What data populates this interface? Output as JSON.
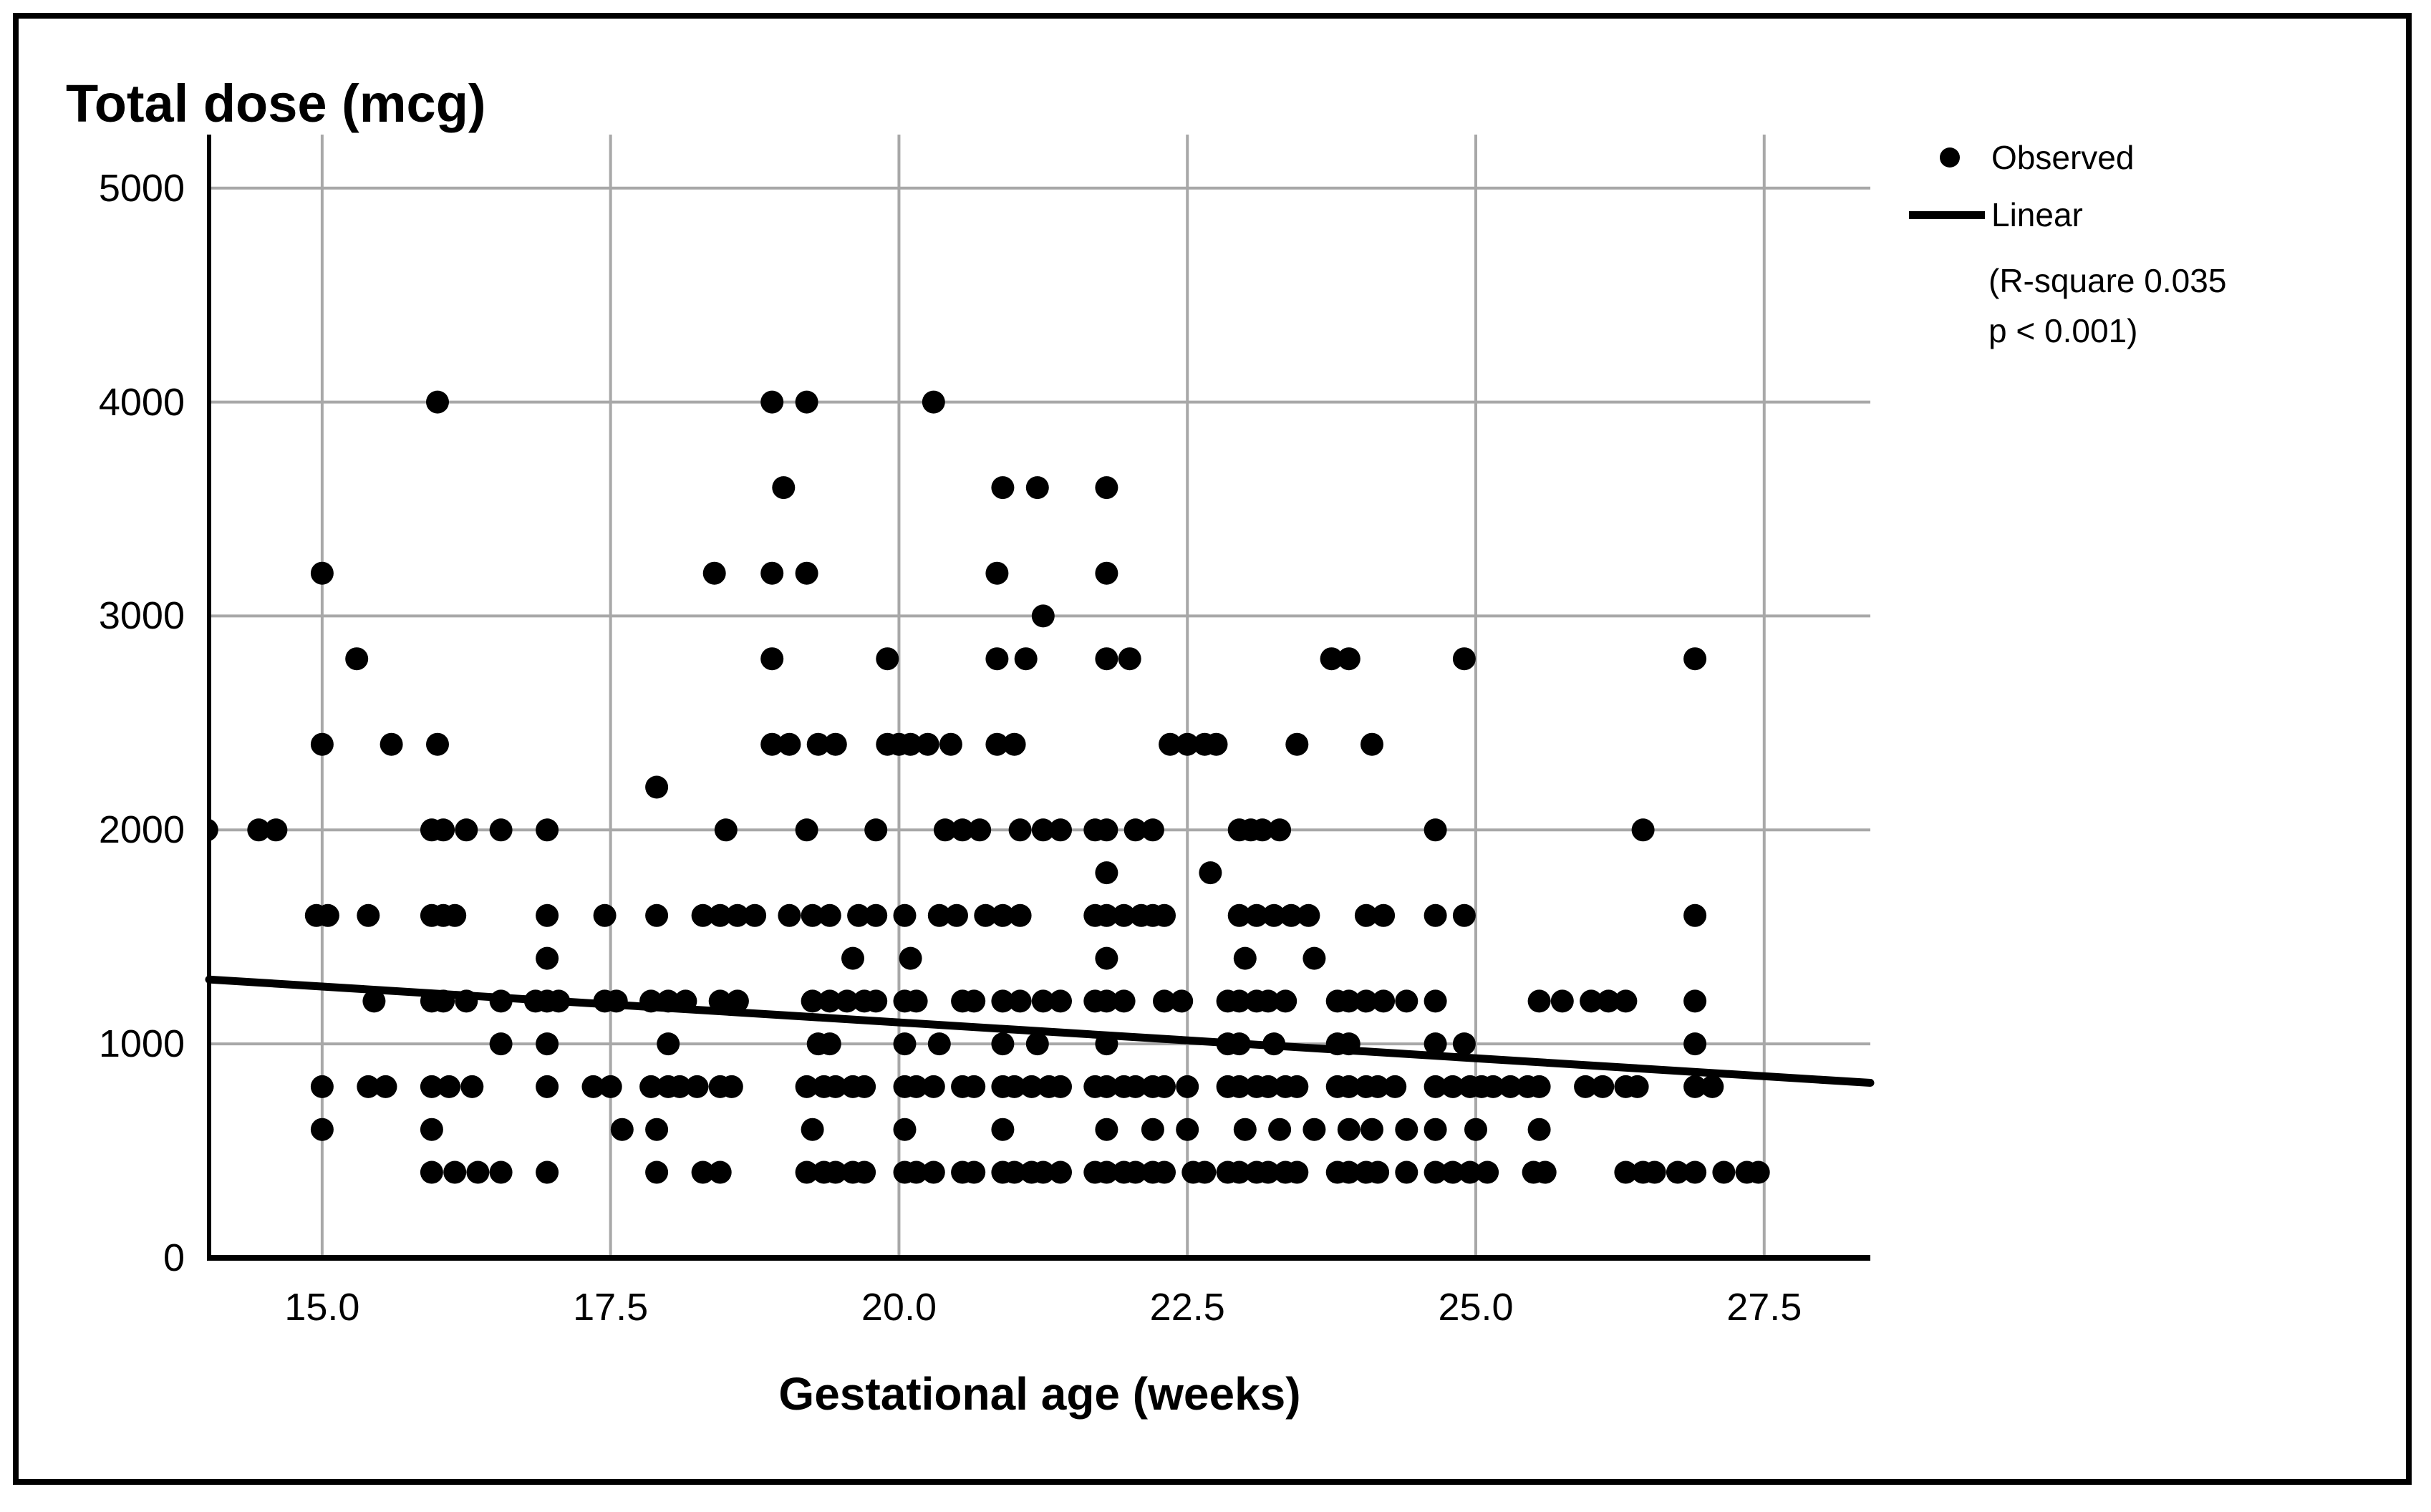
{
  "title": "Total dose (mcg)",
  "x_axis": {
    "label": "Gestational age (weeks)",
    "tick_labels": [
      "15.0",
      "17.5",
      "20.0",
      "22.5",
      "25.0",
      "27.5"
    ],
    "tick_values": [
      15.0,
      17.5,
      20.0,
      22.5,
      25.0,
      27.5
    ],
    "min": 14.02,
    "max": 28.42
  },
  "y_axis": {
    "tick_labels": [
      "0",
      "1000",
      "2000",
      "3000",
      "4000",
      "5000"
    ],
    "tick_values": [
      0,
      1000,
      2000,
      3000,
      4000,
      5000
    ],
    "min": 0,
    "max": 5250
  },
  "legend": {
    "observed_label": "Observed",
    "linear_label": "Linear",
    "note_line1": "(R-square 0.035",
    "note_line2": "p < 0.001)"
  },
  "colors": {
    "points": "#000000",
    "fit_line": "#000000",
    "grid": "#a8a8a8",
    "axis": "#000000",
    "background": "#ffffff",
    "border": "#000000"
  },
  "chart_data": {
    "type": "scatter",
    "title": "Total dose (mcg)",
    "xlabel": "Gestational age (weeks)",
    "ylabel": "Total dose (mcg)",
    "xlim": [
      14.02,
      28.42
    ],
    "ylim": [
      0,
      5250
    ],
    "x_ticks": [
      15.0,
      17.5,
      20.0,
      22.5,
      25.0,
      27.5
    ],
    "y_ticks": [
      0,
      1000,
      2000,
      3000,
      4000,
      5000
    ],
    "grid": true,
    "legend_position": "upper-right-outside",
    "series": [
      {
        "name": "Observed",
        "marker": "dot",
        "points_by_dose": {
          "4000": [
            16.0,
            18.9,
            19.2,
            20.3
          ],
          "3600": [
            19.0,
            20.9,
            21.2,
            21.8
          ],
          "3200": [
            15.0,
            18.4,
            18.9,
            19.2,
            20.85,
            21.8
          ],
          "3000": [
            21.25
          ],
          "2800": [
            15.3,
            18.9,
            19.9,
            20.85,
            21.1,
            21.8,
            22.0,
            23.75,
            23.9,
            24.9,
            26.9
          ],
          "2400": [
            15.0,
            15.6,
            16.0,
            18.9,
            19.05,
            19.3,
            19.45,
            19.9,
            20.0,
            20.1,
            20.25,
            20.45,
            20.85,
            21.0,
            22.35,
            22.5,
            22.65,
            22.75,
            23.45,
            24.1
          ],
          "2200": [
            17.9
          ],
          "2000": [
            14.0,
            14.45,
            14.6,
            15.95,
            16.05,
            16.25,
            16.55,
            16.95,
            18.5,
            19.2,
            19.8,
            20.4,
            20.55,
            20.7,
            21.05,
            21.25,
            21.4,
            21.7,
            21.8,
            22.05,
            22.2,
            22.95,
            23.05,
            23.15,
            23.3,
            24.65,
            26.45
          ],
          "1800": [
            21.8,
            22.7
          ],
          "1600": [
            14.95,
            15.05,
            15.4,
            15.95,
            16.05,
            16.15,
            16.95,
            17.45,
            17.9,
            18.3,
            18.45,
            18.6,
            18.75,
            19.05,
            19.25,
            19.4,
            19.65,
            19.8,
            20.05,
            20.35,
            20.5,
            20.75,
            20.9,
            21.05,
            21.7,
            21.8,
            21.95,
            22.1,
            22.2,
            22.3,
            22.95,
            23.1,
            23.25,
            23.4,
            23.55,
            24.05,
            24.2,
            24.65,
            24.9,
            26.9
          ],
          "1400": [
            16.95,
            19.6,
            20.1,
            21.8,
            23.0,
            23.6
          ],
          "1200": [
            15.45,
            15.95,
            16.05,
            16.25,
            16.55,
            16.85,
            16.95,
            17.05,
            17.45,
            17.55,
            17.85,
            18.0,
            18.15,
            18.45,
            18.6,
            19.25,
            19.4,
            19.55,
            19.7,
            19.8,
            20.05,
            20.15,
            20.55,
            20.65,
            20.9,
            21.05,
            21.25,
            21.4,
            21.7,
            21.8,
            21.95,
            22.3,
            22.45,
            22.85,
            22.95,
            23.1,
            23.2,
            23.35,
            23.8,
            23.9,
            24.05,
            24.2,
            24.4,
            24.65,
            25.55,
            25.75,
            26.0,
            26.15,
            26.3,
            26.9
          ],
          "1000": [
            16.55,
            16.95,
            18.0,
            19.3,
            19.4,
            20.05,
            20.35,
            20.9,
            21.2,
            21.8,
            22.85,
            22.95,
            23.25,
            23.8,
            23.9,
            24.65,
            24.9,
            26.9
          ],
          "800": [
            15.0,
            15.4,
            15.55,
            15.95,
            16.1,
            16.3,
            16.95,
            17.35,
            17.5,
            17.85,
            18.0,
            18.1,
            18.25,
            18.45,
            18.55,
            19.2,
            19.35,
            19.45,
            19.6,
            19.7,
            20.05,
            20.15,
            20.3,
            20.55,
            20.65,
            20.9,
            21.0,
            21.15,
            21.3,
            21.4,
            21.7,
            21.8,
            21.95,
            22.05,
            22.2,
            22.3,
            22.5,
            22.85,
            22.95,
            23.1,
            23.2,
            23.35,
            23.45,
            23.8,
            23.9,
            24.05,
            24.15,
            24.3,
            24.65,
            24.8,
            24.95,
            25.05,
            25.15,
            25.3,
            25.45,
            25.55,
            25.95,
            26.1,
            26.3,
            26.4,
            26.9,
            27.05
          ],
          "600": [
            15.0,
            15.95,
            17.6,
            17.9,
            19.25,
            20.05,
            20.9,
            21.8,
            22.2,
            22.5,
            23.0,
            23.3,
            23.6,
            23.9,
            24.1,
            24.4,
            24.65,
            25.0,
            25.55
          ],
          "400": [
            15.95,
            16.15,
            16.35,
            16.55,
            16.95,
            17.9,
            18.3,
            18.45,
            19.2,
            19.35,
            19.45,
            19.6,
            19.7,
            20.05,
            20.15,
            20.3,
            20.55,
            20.65,
            20.9,
            21.0,
            21.15,
            21.25,
            21.4,
            21.7,
            21.8,
            21.95,
            22.05,
            22.2,
            22.3,
            22.55,
            22.65,
            22.85,
            22.95,
            23.1,
            23.2,
            23.35,
            23.45,
            23.8,
            23.9,
            24.05,
            24.15,
            24.4,
            24.65,
            24.8,
            24.95,
            25.1,
            25.5,
            25.6,
            26.3,
            26.45,
            26.55,
            26.75,
            26.9,
            27.15,
            27.35,
            27.45
          ]
        }
      }
    ],
    "fit_line": {
      "name": "Linear",
      "r_square": 0.035,
      "p_label": "p < 0.001",
      "x1": 14.02,
      "y1": 1301,
      "x2": 28.42,
      "y2": 818
    }
  }
}
